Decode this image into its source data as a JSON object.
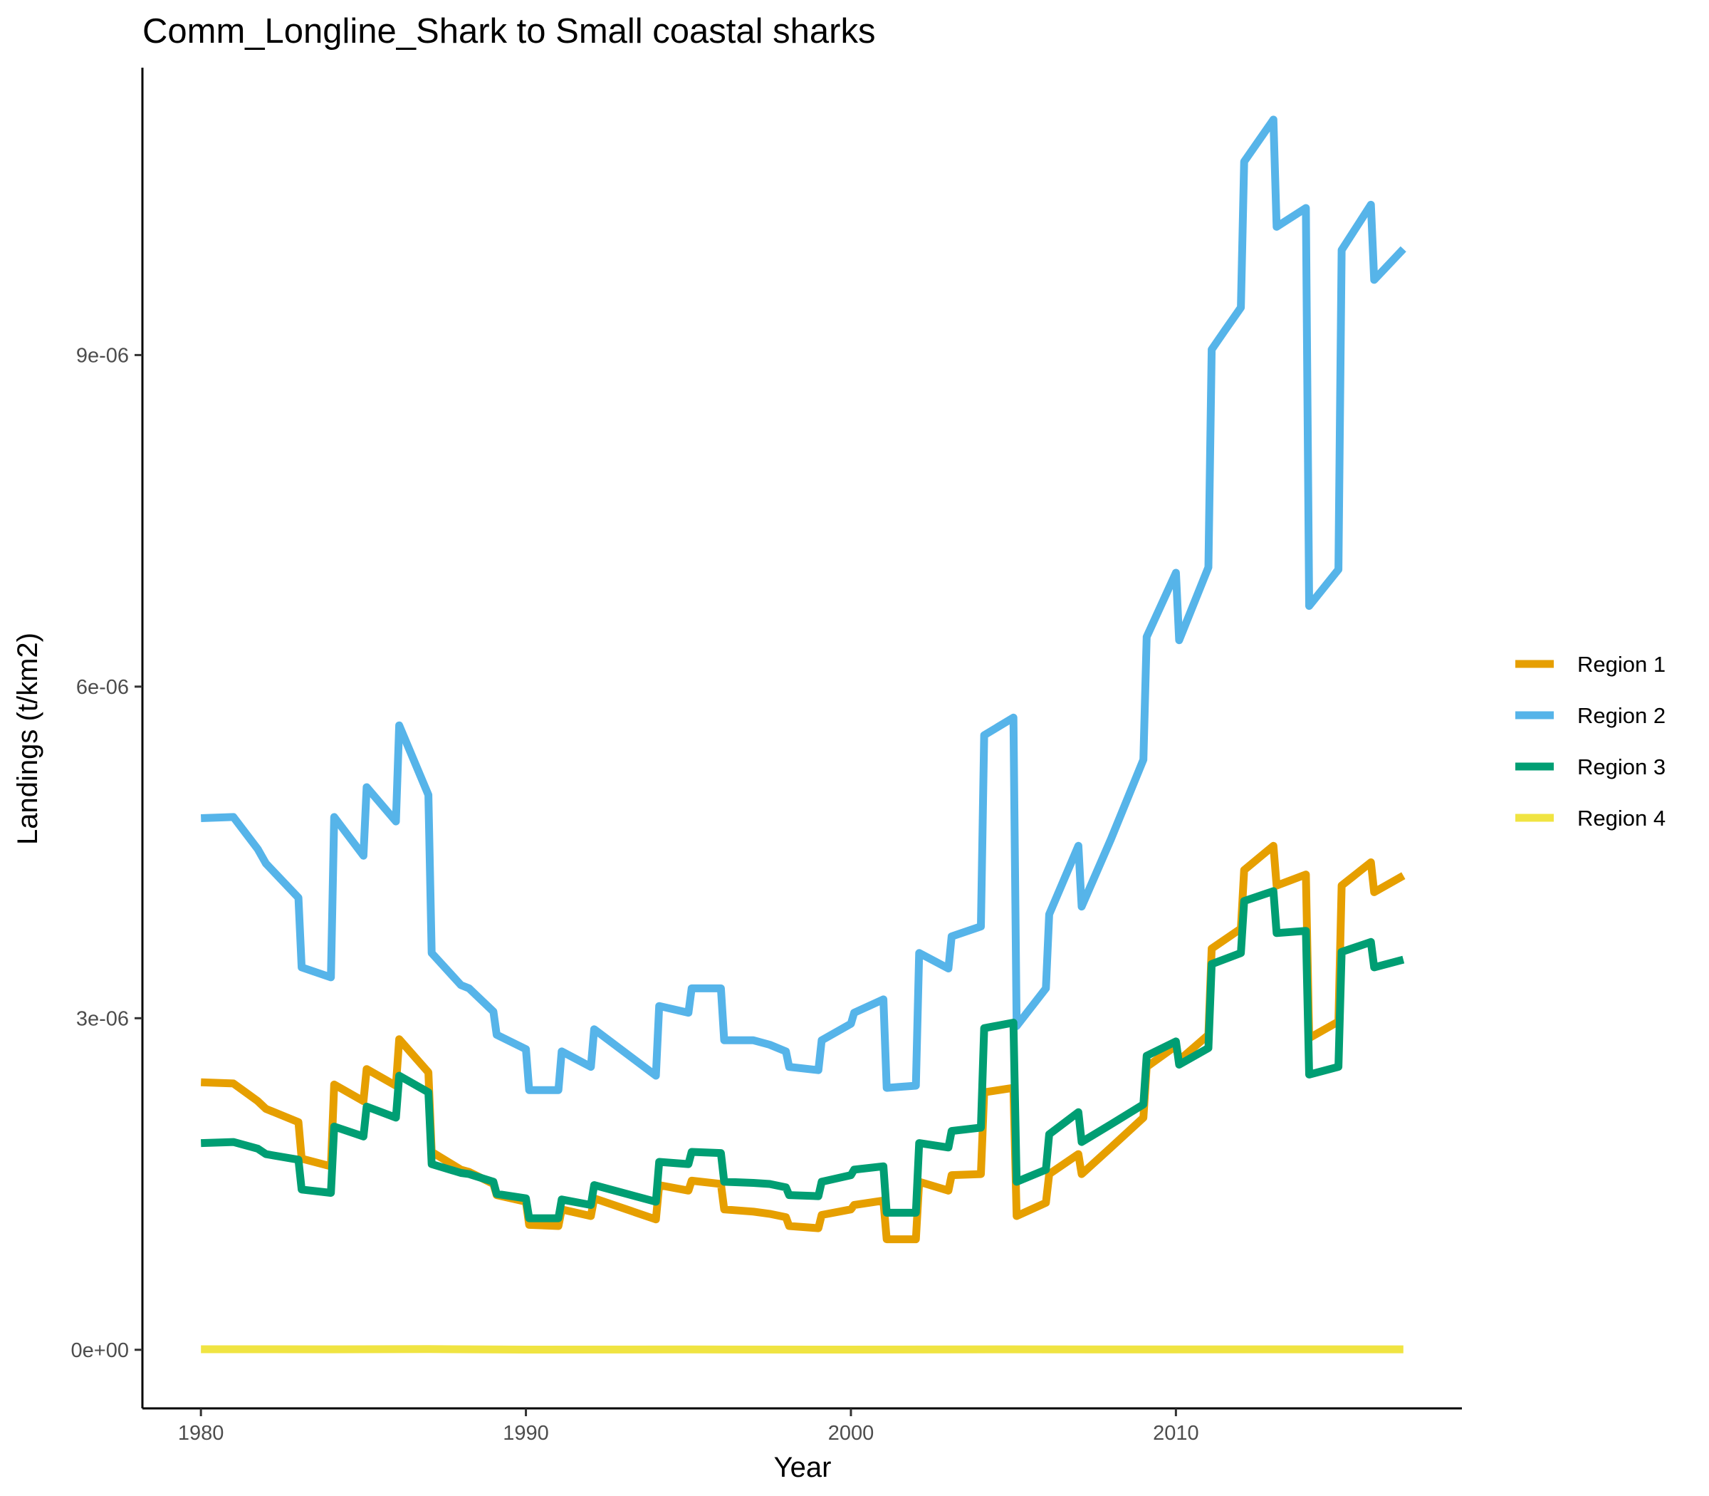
{
  "chart_data": {
    "type": "line",
    "title": "Comm_Longline_Shark to Small coastal sharks",
    "xlabel": "Year",
    "ylabel": "Landings (t/km2)",
    "xlim": [
      1978.2,
      2018.8
    ],
    "ylim": [
      -5.3e-07,
      1.16e-05
    ],
    "x_ticks": [
      {
        "value": 1980,
        "label": "1980"
      },
      {
        "value": 1990,
        "label": "1990"
      },
      {
        "value": 2000,
        "label": "2000"
      },
      {
        "value": 2010,
        "label": "2010"
      }
    ],
    "y_ticks": [
      {
        "value": 0,
        "label": "0e+00"
      },
      {
        "value": 3e-06,
        "label": "3e-06"
      },
      {
        "value": 6e-06,
        "label": "6e-06"
      },
      {
        "value": 9e-06,
        "label": "9e-06"
      }
    ],
    "grid": false,
    "legend_position": "right",
    "series": [
      {
        "name": "Region 1",
        "color": "#E69F00",
        "points": [
          [
            1980.0,
            2.42e-06
          ],
          [
            1981.0,
            2.41e-06
          ],
          [
            1981.75,
            2.25e-06
          ],
          [
            1982.0,
            2.18e-06
          ],
          [
            1983.0,
            2.06e-06
          ],
          [
            1983.1,
            1.73e-06
          ],
          [
            1984.0,
            1.66e-06
          ],
          [
            1984.1,
            2.4e-06
          ],
          [
            1985.0,
            2.25e-06
          ],
          [
            1985.1,
            2.54e-06
          ],
          [
            1986.0,
            2.39e-06
          ],
          [
            1986.1,
            2.81e-06
          ],
          [
            1987.0,
            2.51e-06
          ],
          [
            1987.1,
            1.79e-06
          ],
          [
            1988.0,
            1.63e-06
          ],
          [
            1988.25,
            1.61e-06
          ],
          [
            1989.0,
            1.5e-06
          ],
          [
            1989.1,
            1.4e-06
          ],
          [
            1990.0,
            1.34e-06
          ],
          [
            1990.1,
            1.13e-06
          ],
          [
            1991.0,
            1.12e-06
          ],
          [
            1991.1,
            1.27e-06
          ],
          [
            1992.0,
            1.21e-06
          ],
          [
            1992.1,
            1.37e-06
          ],
          [
            1994.0,
            1.18e-06
          ],
          [
            1994.1,
            1.49e-06
          ],
          [
            1995.0,
            1.44e-06
          ],
          [
            1995.1,
            1.53e-06
          ],
          [
            1996.0,
            1.5e-06
          ],
          [
            1996.1,
            1.27e-06
          ],
          [
            1997.0,
            1.25e-06
          ],
          [
            1997.5,
            1.23e-06
          ],
          [
            1998.0,
            1.2e-06
          ],
          [
            1998.1,
            1.12e-06
          ],
          [
            1999.0,
            1.1e-06
          ],
          [
            1999.1,
            1.22e-06
          ],
          [
            2000.0,
            1.27e-06
          ],
          [
            2000.1,
            1.31e-06
          ],
          [
            2001.0,
            1.35e-06
          ],
          [
            2001.1,
            1e-06
          ],
          [
            2002.0,
            1e-06
          ],
          [
            2002.1,
            1.52e-06
          ],
          [
            2003.0,
            1.44e-06
          ],
          [
            2003.1,
            1.58e-06
          ],
          [
            2004.0,
            1.59e-06
          ],
          [
            2004.1,
            2.33e-06
          ],
          [
            2005.0,
            2.37e-06
          ],
          [
            2005.1,
            1.21e-06
          ],
          [
            2006.0,
            1.33e-06
          ],
          [
            2006.1,
            1.59e-06
          ],
          [
            2007.0,
            1.77e-06
          ],
          [
            2007.1,
            1.59e-06
          ],
          [
            2008.0,
            1.83e-06
          ],
          [
            2009.0,
            2.1e-06
          ],
          [
            2009.1,
            2.56e-06
          ],
          [
            2010.0,
            2.75e-06
          ],
          [
            2010.1,
            2.62e-06
          ],
          [
            2011.0,
            2.85e-06
          ],
          [
            2011.1,
            3.63e-06
          ],
          [
            2012.0,
            3.81e-06
          ],
          [
            2012.1,
            4.34e-06
          ],
          [
            2013.0,
            4.56e-06
          ],
          [
            2013.1,
            4.2e-06
          ],
          [
            2014.0,
            4.3e-06
          ],
          [
            2014.1,
            2.82e-06
          ],
          [
            2015.0,
            2.97e-06
          ],
          [
            2015.1,
            4.2e-06
          ],
          [
            2016.0,
            4.41e-06
          ],
          [
            2016.1,
            4.14e-06
          ],
          [
            2017.0,
            4.29e-06
          ]
        ]
      },
      {
        "name": "Region 2",
        "color": "#56B4E9",
        "points": [
          [
            1980.0,
            4.81e-06
          ],
          [
            1981.0,
            4.82e-06
          ],
          [
            1981.75,
            4.53e-06
          ],
          [
            1982.0,
            4.4e-06
          ],
          [
            1983.0,
            4.09e-06
          ],
          [
            1983.1,
            3.46e-06
          ],
          [
            1984.0,
            3.37e-06
          ],
          [
            1984.1,
            4.82e-06
          ],
          [
            1985.0,
            4.47e-06
          ],
          [
            1985.1,
            5.09e-06
          ],
          [
            1986.0,
            4.78e-06
          ],
          [
            1986.1,
            5.65e-06
          ],
          [
            1987.0,
            5.02e-06
          ],
          [
            1987.1,
            3.59e-06
          ],
          [
            1988.0,
            3.3e-06
          ],
          [
            1988.25,
            3.27e-06
          ],
          [
            1989.0,
            3.06e-06
          ],
          [
            1989.1,
            2.85e-06
          ],
          [
            1990.0,
            2.72e-06
          ],
          [
            1990.1,
            2.35e-06
          ],
          [
            1991.0,
            2.35e-06
          ],
          [
            1991.1,
            2.7e-06
          ],
          [
            1992.0,
            2.56e-06
          ],
          [
            1992.1,
            2.9e-06
          ],
          [
            1994.0,
            2.48e-06
          ],
          [
            1994.1,
            3.11e-06
          ],
          [
            1995.0,
            3.05e-06
          ],
          [
            1995.1,
            3.27e-06
          ],
          [
            1996.0,
            3.27e-06
          ],
          [
            1996.1,
            2.8e-06
          ],
          [
            1997.0,
            2.8e-06
          ],
          [
            1997.5,
            2.76e-06
          ],
          [
            1998.0,
            2.7e-06
          ],
          [
            1998.1,
            2.56e-06
          ],
          [
            1999.0,
            2.53e-06
          ],
          [
            1999.1,
            2.8e-06
          ],
          [
            2000.0,
            2.95e-06
          ],
          [
            2000.1,
            3.05e-06
          ],
          [
            2001.0,
            3.17e-06
          ],
          [
            2001.1,
            2.37e-06
          ],
          [
            2002.0,
            2.39e-06
          ],
          [
            2002.1,
            3.59e-06
          ],
          [
            2003.0,
            3.45e-06
          ],
          [
            2003.1,
            3.74e-06
          ],
          [
            2004.0,
            3.83e-06
          ],
          [
            2004.1,
            5.56e-06
          ],
          [
            2005.0,
            5.72e-06
          ],
          [
            2005.1,
            2.93e-06
          ],
          [
            2006.0,
            3.27e-06
          ],
          [
            2006.1,
            3.94e-06
          ],
          [
            2007.0,
            4.56e-06
          ],
          [
            2007.1,
            4.01e-06
          ],
          [
            2008.0,
            4.62e-06
          ],
          [
            2009.0,
            5.34e-06
          ],
          [
            2009.1,
            6.45e-06
          ],
          [
            2010.0,
            7.03e-06
          ],
          [
            2010.1,
            6.42e-06
          ],
          [
            2011.0,
            7.08e-06
          ],
          [
            2011.1,
            9.05e-06
          ],
          [
            2011.5,
            9.22e-06
          ],
          [
            2012.0,
            9.43e-06
          ],
          [
            2012.1,
            1.075e-05
          ],
          [
            2013.0,
            1.113e-05
          ],
          [
            2013.1,
            1.016e-05
          ],
          [
            2014.0,
            1.033e-05
          ],
          [
            2014.1,
            6.73e-06
          ],
          [
            2015.0,
            7.06e-06
          ],
          [
            2015.1,
            9.95e-06
          ],
          [
            2016.0,
            1.036e-05
          ],
          [
            2016.1,
            9.68e-06
          ],
          [
            2017.0,
            9.96e-06
          ]
        ]
      },
      {
        "name": "Region 3",
        "color": "#009E73",
        "points": [
          [
            1980.0,
            1.87e-06
          ],
          [
            1981.0,
            1.88e-06
          ],
          [
            1981.75,
            1.82e-06
          ],
          [
            1982.0,
            1.77e-06
          ],
          [
            1983.0,
            1.72e-06
          ],
          [
            1983.1,
            1.45e-06
          ],
          [
            1984.0,
            1.42e-06
          ],
          [
            1984.1,
            2.02e-06
          ],
          [
            1985.0,
            1.93e-06
          ],
          [
            1985.1,
            2.2e-06
          ],
          [
            1986.0,
            2.1e-06
          ],
          [
            1986.1,
            2.48e-06
          ],
          [
            1987.0,
            2.33e-06
          ],
          [
            1987.1,
            1.68e-06
          ],
          [
            1988.0,
            1.6e-06
          ],
          [
            1988.25,
            1.59e-06
          ],
          [
            1989.0,
            1.52e-06
          ],
          [
            1989.1,
            1.41e-06
          ],
          [
            1990.0,
            1.37e-06
          ],
          [
            1990.1,
            1.19e-06
          ],
          [
            1991.0,
            1.19e-06
          ],
          [
            1991.1,
            1.36e-06
          ],
          [
            1992.0,
            1.31e-06
          ],
          [
            1992.1,
            1.49e-06
          ],
          [
            1994.0,
            1.34e-06
          ],
          [
            1994.1,
            1.7e-06
          ],
          [
            1995.0,
            1.68e-06
          ],
          [
            1995.1,
            1.79e-06
          ],
          [
            1996.0,
            1.78e-06
          ],
          [
            1996.1,
            1.52e-06
          ],
          [
            1997.0,
            1.51e-06
          ],
          [
            1997.5,
            1.5e-06
          ],
          [
            1998.0,
            1.47e-06
          ],
          [
            1998.1,
            1.4e-06
          ],
          [
            1999.0,
            1.39e-06
          ],
          [
            1999.1,
            1.52e-06
          ],
          [
            2000.0,
            1.58e-06
          ],
          [
            2000.1,
            1.63e-06
          ],
          [
            2001.0,
            1.66e-06
          ],
          [
            2001.1,
            1.24e-06
          ],
          [
            2002.0,
            1.24e-06
          ],
          [
            2002.1,
            1.87e-06
          ],
          [
            2003.0,
            1.83e-06
          ],
          [
            2003.1,
            1.98e-06
          ],
          [
            2004.0,
            2.01e-06
          ],
          [
            2004.1,
            2.91e-06
          ],
          [
            2005.0,
            2.96e-06
          ],
          [
            2005.1,
            1.52e-06
          ],
          [
            2006.0,
            1.63e-06
          ],
          [
            2006.1,
            1.95e-06
          ],
          [
            2007.0,
            2.15e-06
          ],
          [
            2007.1,
            1.88e-06
          ],
          [
            2008.0,
            2.04e-06
          ],
          [
            2009.0,
            2.22e-06
          ],
          [
            2009.1,
            2.66e-06
          ],
          [
            2010.0,
            2.79e-06
          ],
          [
            2010.1,
            2.58e-06
          ],
          [
            2011.0,
            2.73e-06
          ],
          [
            2011.1,
            3.49e-06
          ],
          [
            2012.0,
            3.59e-06
          ],
          [
            2012.1,
            4.06e-06
          ],
          [
            2013.0,
            4.15e-06
          ],
          [
            2013.1,
            3.77e-06
          ],
          [
            2014.0,
            3.79e-06
          ],
          [
            2014.1,
            2.49e-06
          ],
          [
            2015.0,
            2.56e-06
          ],
          [
            2015.1,
            3.6e-06
          ],
          [
            2016.0,
            3.69e-06
          ],
          [
            2016.1,
            3.46e-06
          ],
          [
            2017.0,
            3.53e-06
          ]
        ]
      },
      {
        "name": "Region 4",
        "color": "#F0E442",
        "points": [
          [
            1980.0,
            5e-09
          ],
          [
            1984.0,
            4e-09
          ],
          [
            1987.0,
            6e-09
          ],
          [
            1990.0,
            2e-09
          ],
          [
            1995.0,
            3e-09
          ],
          [
            2000.0,
            2e-09
          ],
          [
            2005.0,
            4e-09
          ],
          [
            2010.0,
            3e-09
          ],
          [
            2014.0,
            4e-09
          ],
          [
            2017.0,
            4e-09
          ]
        ]
      }
    ]
  }
}
